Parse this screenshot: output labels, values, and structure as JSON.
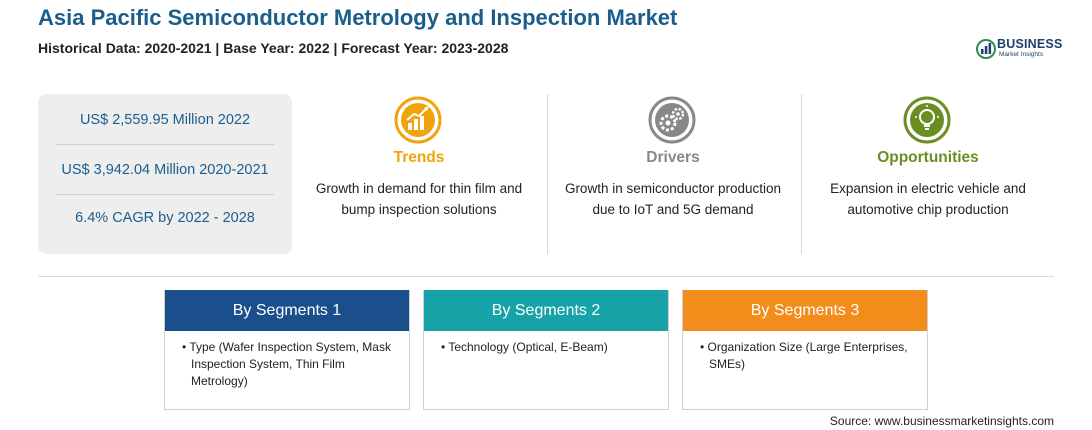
{
  "title": "Asia Pacific Semiconductor Metrology and Inspection Market",
  "subtitle": "Historical Data: 2020-2021 | Base Year: 2022 | Forecast Year: 2023-2028",
  "logo": {
    "line1": "BUSINESS",
    "line2": "Market Insights",
    "color": "#1f3f6e"
  },
  "stats": [
    {
      "text": "US$ 2,559.95 Million 2022"
    },
    {
      "text": "US$ 3,942.04 Million 2020-2021"
    },
    {
      "text": "6.4% CAGR by 2022 - 2028"
    }
  ],
  "columns": [
    {
      "heading": "Trends",
      "text": "Growth in demand for thin film and bump inspection solutions",
      "icon": "growth-chart-icon",
      "color": "#f0a30a"
    },
    {
      "heading": "Drivers",
      "text": "Growth in semiconductor production due to IoT and 5G demand",
      "icon": "gears-icon",
      "color": "#888888"
    },
    {
      "heading": "Opportunities",
      "text": "Expansion in electric vehicle and automotive chip production",
      "icon": "lightbulb-icon",
      "color": "#6b8e23"
    }
  ],
  "segments": [
    {
      "title": "By Segments 1",
      "color": "#1a4f8b",
      "items": [
        "Type (Wafer Inspection System, Mask Inspection System, Thin Film Metrology)"
      ]
    },
    {
      "title": "By Segments 2",
      "color": "#17a2a8",
      "items": [
        "Technology (Optical, E-Beam)"
      ]
    },
    {
      "title": "By Segments 3",
      "color": "#f28c1a",
      "items": [
        "Organization Size (Large Enterprises, SMEs)"
      ]
    }
  ],
  "source": "Source: www.businessmarketinsights.com"
}
